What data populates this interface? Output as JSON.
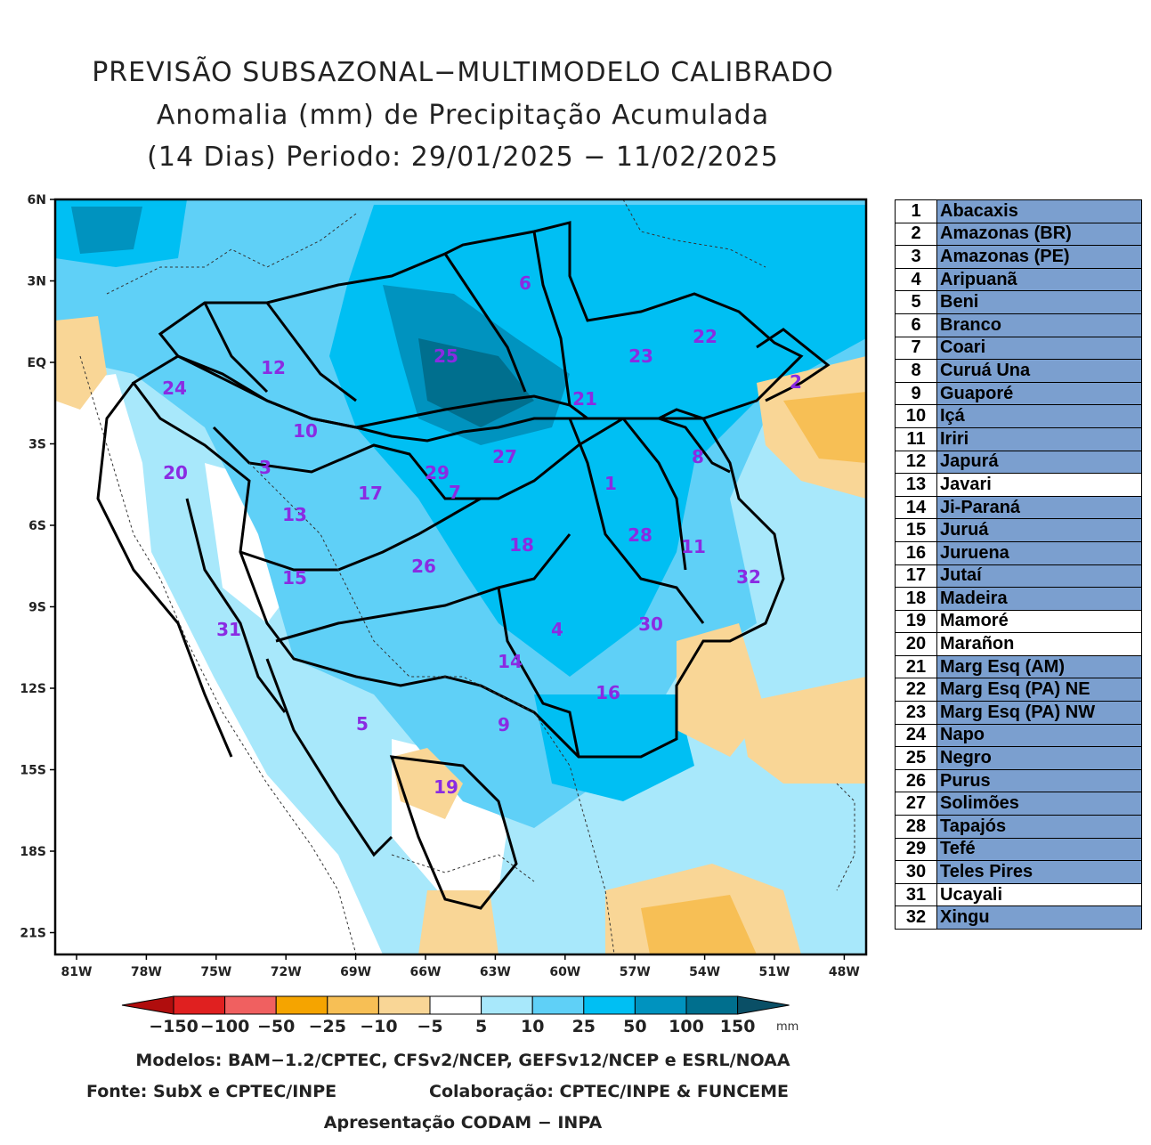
{
  "title": {
    "line1": "PREVISÃO SUBSAZONAL−MULTIMODELO CALIBRADO",
    "line2": "Anomalia (mm) de Precipitação Acumulada",
    "line3": "(14 Dias) Periodo: 29/01/2025 − 11/02/2025"
  },
  "axes": {
    "lat_labels": [
      "6N",
      "3N",
      "EQ",
      "3S",
      "6S",
      "9S",
      "12S",
      "15S",
      "18S",
      "21S"
    ],
    "lon_labels": [
      "81W",
      "78W",
      "75W",
      "72W",
      "69W",
      "66W",
      "63W",
      "60W",
      "57W",
      "54W",
      "51W",
      "48W"
    ]
  },
  "colorbar": {
    "labels": [
      "−150",
      "−100",
      "−50",
      "−25",
      "−10",
      "−5",
      "5",
      "10",
      "25",
      "50",
      "100",
      "150"
    ],
    "unit": "mm",
    "colors": [
      "#b00d0d",
      "#e02020",
      "#f06060",
      "#f5a400",
      "#f7bf55",
      "#f9d696",
      "#ffffff",
      "#a8e8fb",
      "#5fd0f7",
      "#00bff3",
      "#0093bf",
      "#006f8e",
      "#0a4f66"
    ]
  },
  "basins": [
    {
      "num": "1",
      "name": "Abacaxis",
      "highlight": true
    },
    {
      "num": "2",
      "name": "Amazonas (BR)",
      "highlight": true
    },
    {
      "num": "3",
      "name": "Amazonas (PE)",
      "highlight": true
    },
    {
      "num": "4",
      "name": "Aripuanã",
      "highlight": true
    },
    {
      "num": "5",
      "name": "Beni",
      "highlight": true
    },
    {
      "num": "6",
      "name": "Branco",
      "highlight": true
    },
    {
      "num": "7",
      "name": "Coari",
      "highlight": true
    },
    {
      "num": "8",
      "name": "Curuá Una",
      "highlight": true
    },
    {
      "num": "9",
      "name": "Guaporé",
      "highlight": true
    },
    {
      "num": "10",
      "name": "Içá",
      "highlight": true
    },
    {
      "num": "11",
      "name": "Iriri",
      "highlight": true
    },
    {
      "num": "12",
      "name": "Japurá",
      "highlight": true
    },
    {
      "num": "13",
      "name": "Javari",
      "highlight": false
    },
    {
      "num": "14",
      "name": "Ji-Paraná",
      "highlight": true
    },
    {
      "num": "15",
      "name": "Juruá",
      "highlight": true
    },
    {
      "num": "16",
      "name": "Juruena",
      "highlight": true
    },
    {
      "num": "17",
      "name": "Jutaí",
      "highlight": true
    },
    {
      "num": "18",
      "name": "Madeira",
      "highlight": true
    },
    {
      "num": "19",
      "name": "Mamoré",
      "highlight": false
    },
    {
      "num": "20",
      "name": "Marañon",
      "highlight": false
    },
    {
      "num": "21",
      "name": "Marg Esq (AM)",
      "highlight": true
    },
    {
      "num": "22",
      "name": "Marg Esq (PA) NE",
      "highlight": true
    },
    {
      "num": "23",
      "name": "Marg Esq (PA) NW",
      "highlight": true
    },
    {
      "num": "24",
      "name": "Napo",
      "highlight": true
    },
    {
      "num": "25",
      "name": "Negro",
      "highlight": true
    },
    {
      "num": "26",
      "name": "Purus",
      "highlight": true
    },
    {
      "num": "27",
      "name": "Solimões",
      "highlight": true
    },
    {
      "num": "28",
      "name": "Tapajós",
      "highlight": true
    },
    {
      "num": "29",
      "name": "Tefé",
      "highlight": true
    },
    {
      "num": "30",
      "name": "Teles Pires",
      "highlight": true
    },
    {
      "num": "31",
      "name": "Ucayali",
      "highlight": false
    },
    {
      "num": "32",
      "name": "Xingu",
      "highlight": true
    }
  ],
  "footer": {
    "models": "Modelos: BAM−1.2/CPTEC, CFSv2/NCEP, GEFSv12/NCEP e ESRL/NOAA",
    "source": "Fonte: SubX e CPTEC/INPE",
    "collab": "Colaboração: CPTEC/INPE & FUNCEME",
    "presentation": "Apresentação CODAM − INPA"
  }
}
